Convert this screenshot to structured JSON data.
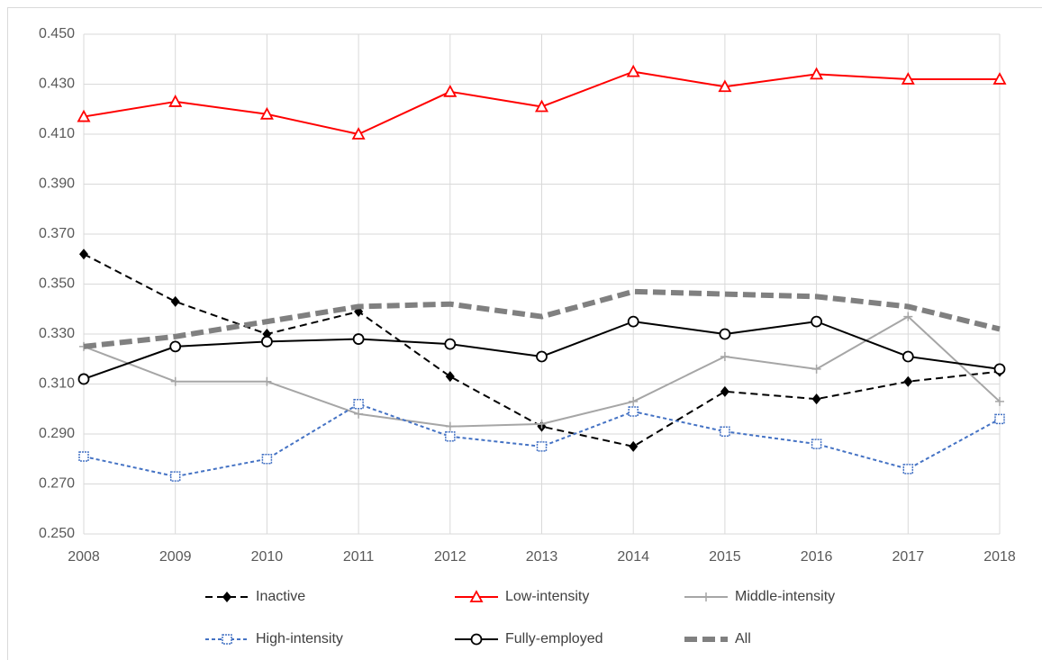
{
  "chart_data": {
    "type": "line",
    "x": [
      2008,
      2009,
      2010,
      2011,
      2012,
      2013,
      2014,
      2015,
      2016,
      2017,
      2018
    ],
    "xlim": [
      2008,
      2018
    ],
    "xticks": [
      2008,
      2009,
      2010,
      2011,
      2012,
      2013,
      2014,
      2015,
      2016,
      2017,
      2018
    ],
    "ylim": [
      0.25,
      0.45
    ],
    "yticks": [
      {
        "value": 0.25,
        "label": "0.250"
      },
      {
        "value": 0.27,
        "label": "0.270"
      },
      {
        "value": 0.29,
        "label": "0.290"
      },
      {
        "value": 0.31,
        "label": "0.310"
      },
      {
        "value": 0.33,
        "label": "0.330"
      },
      {
        "value": 0.35,
        "label": "0.350"
      },
      {
        "value": 0.37,
        "label": "0.370"
      },
      {
        "value": 0.39,
        "label": "0.390"
      },
      {
        "value": 0.41,
        "label": "0.410"
      },
      {
        "value": 0.43,
        "label": "0.430"
      },
      {
        "value": 0.45,
        "label": "0.450"
      }
    ],
    "grid": true,
    "legend": "bottom",
    "series": [
      {
        "name": "Inactive",
        "color": "#000000",
        "line_style": "dashed",
        "marker": "diamond",
        "values": [
          0.362,
          0.343,
          0.33,
          0.339,
          0.313,
          0.293,
          0.285,
          0.307,
          0.304,
          0.311,
          0.315
        ]
      },
      {
        "name": "Low-intensity",
        "color": "#ff0000",
        "line_style": "solid",
        "marker": "triangle",
        "values": [
          0.417,
          0.423,
          0.418,
          0.41,
          0.427,
          0.421,
          0.435,
          0.429,
          0.434,
          0.432,
          0.432
        ]
      },
      {
        "name": "Middle-intensity",
        "color": "#a6a6a6",
        "line_style": "solid",
        "marker": "plus",
        "values": [
          0.325,
          0.311,
          0.311,
          0.298,
          0.293,
          0.294,
          0.303,
          0.321,
          0.316,
          0.337,
          0.303
        ]
      },
      {
        "name": "High-intensity",
        "color": "#4472c4",
        "line_style": "dotted",
        "marker": "square",
        "values": [
          0.281,
          0.273,
          0.28,
          0.302,
          0.289,
          0.285,
          0.299,
          0.291,
          0.286,
          0.276,
          0.296
        ]
      },
      {
        "name": "Fully-employed",
        "color": "#000000",
        "line_style": "solid",
        "marker": "circle",
        "values": [
          0.312,
          0.325,
          0.327,
          0.328,
          0.326,
          0.321,
          0.335,
          0.33,
          0.335,
          0.321,
          0.316
        ]
      },
      {
        "name": "All",
        "color": "#808080",
        "line_style": "thick-dashed",
        "marker": "none",
        "values": [
          0.325,
          0.329,
          0.335,
          0.341,
          0.342,
          0.337,
          0.347,
          0.346,
          0.345,
          0.341,
          0.332
        ]
      }
    ]
  }
}
